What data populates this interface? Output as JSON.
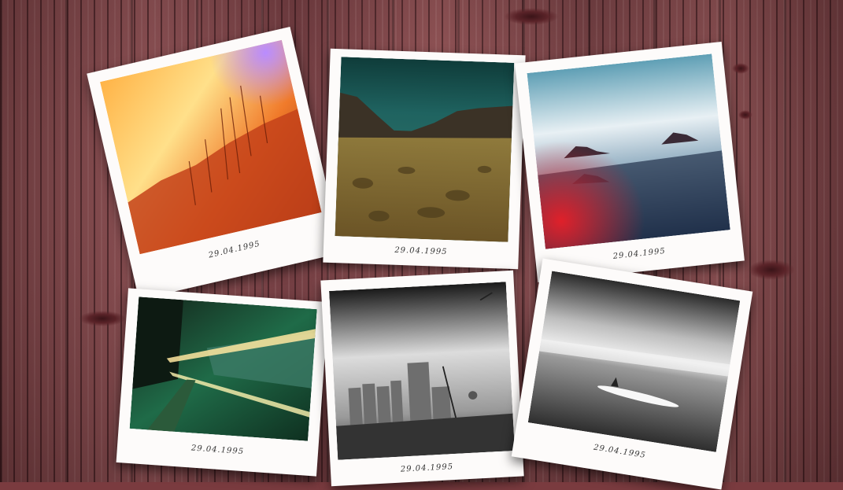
{
  "polaroids": [
    {
      "caption": "29.04.1995",
      "subject": "sunset-field"
    },
    {
      "caption": "29.04.1995",
      "subject": "desert-valley"
    },
    {
      "caption": "29.04.1995",
      "subject": "sea-rocks"
    },
    {
      "caption": "29.04.1995",
      "subject": "night-street"
    },
    {
      "caption": "29.04.1995",
      "subject": "industrial-silos"
    },
    {
      "caption": "29.04.1995",
      "subject": "surfboard-beach"
    }
  ]
}
